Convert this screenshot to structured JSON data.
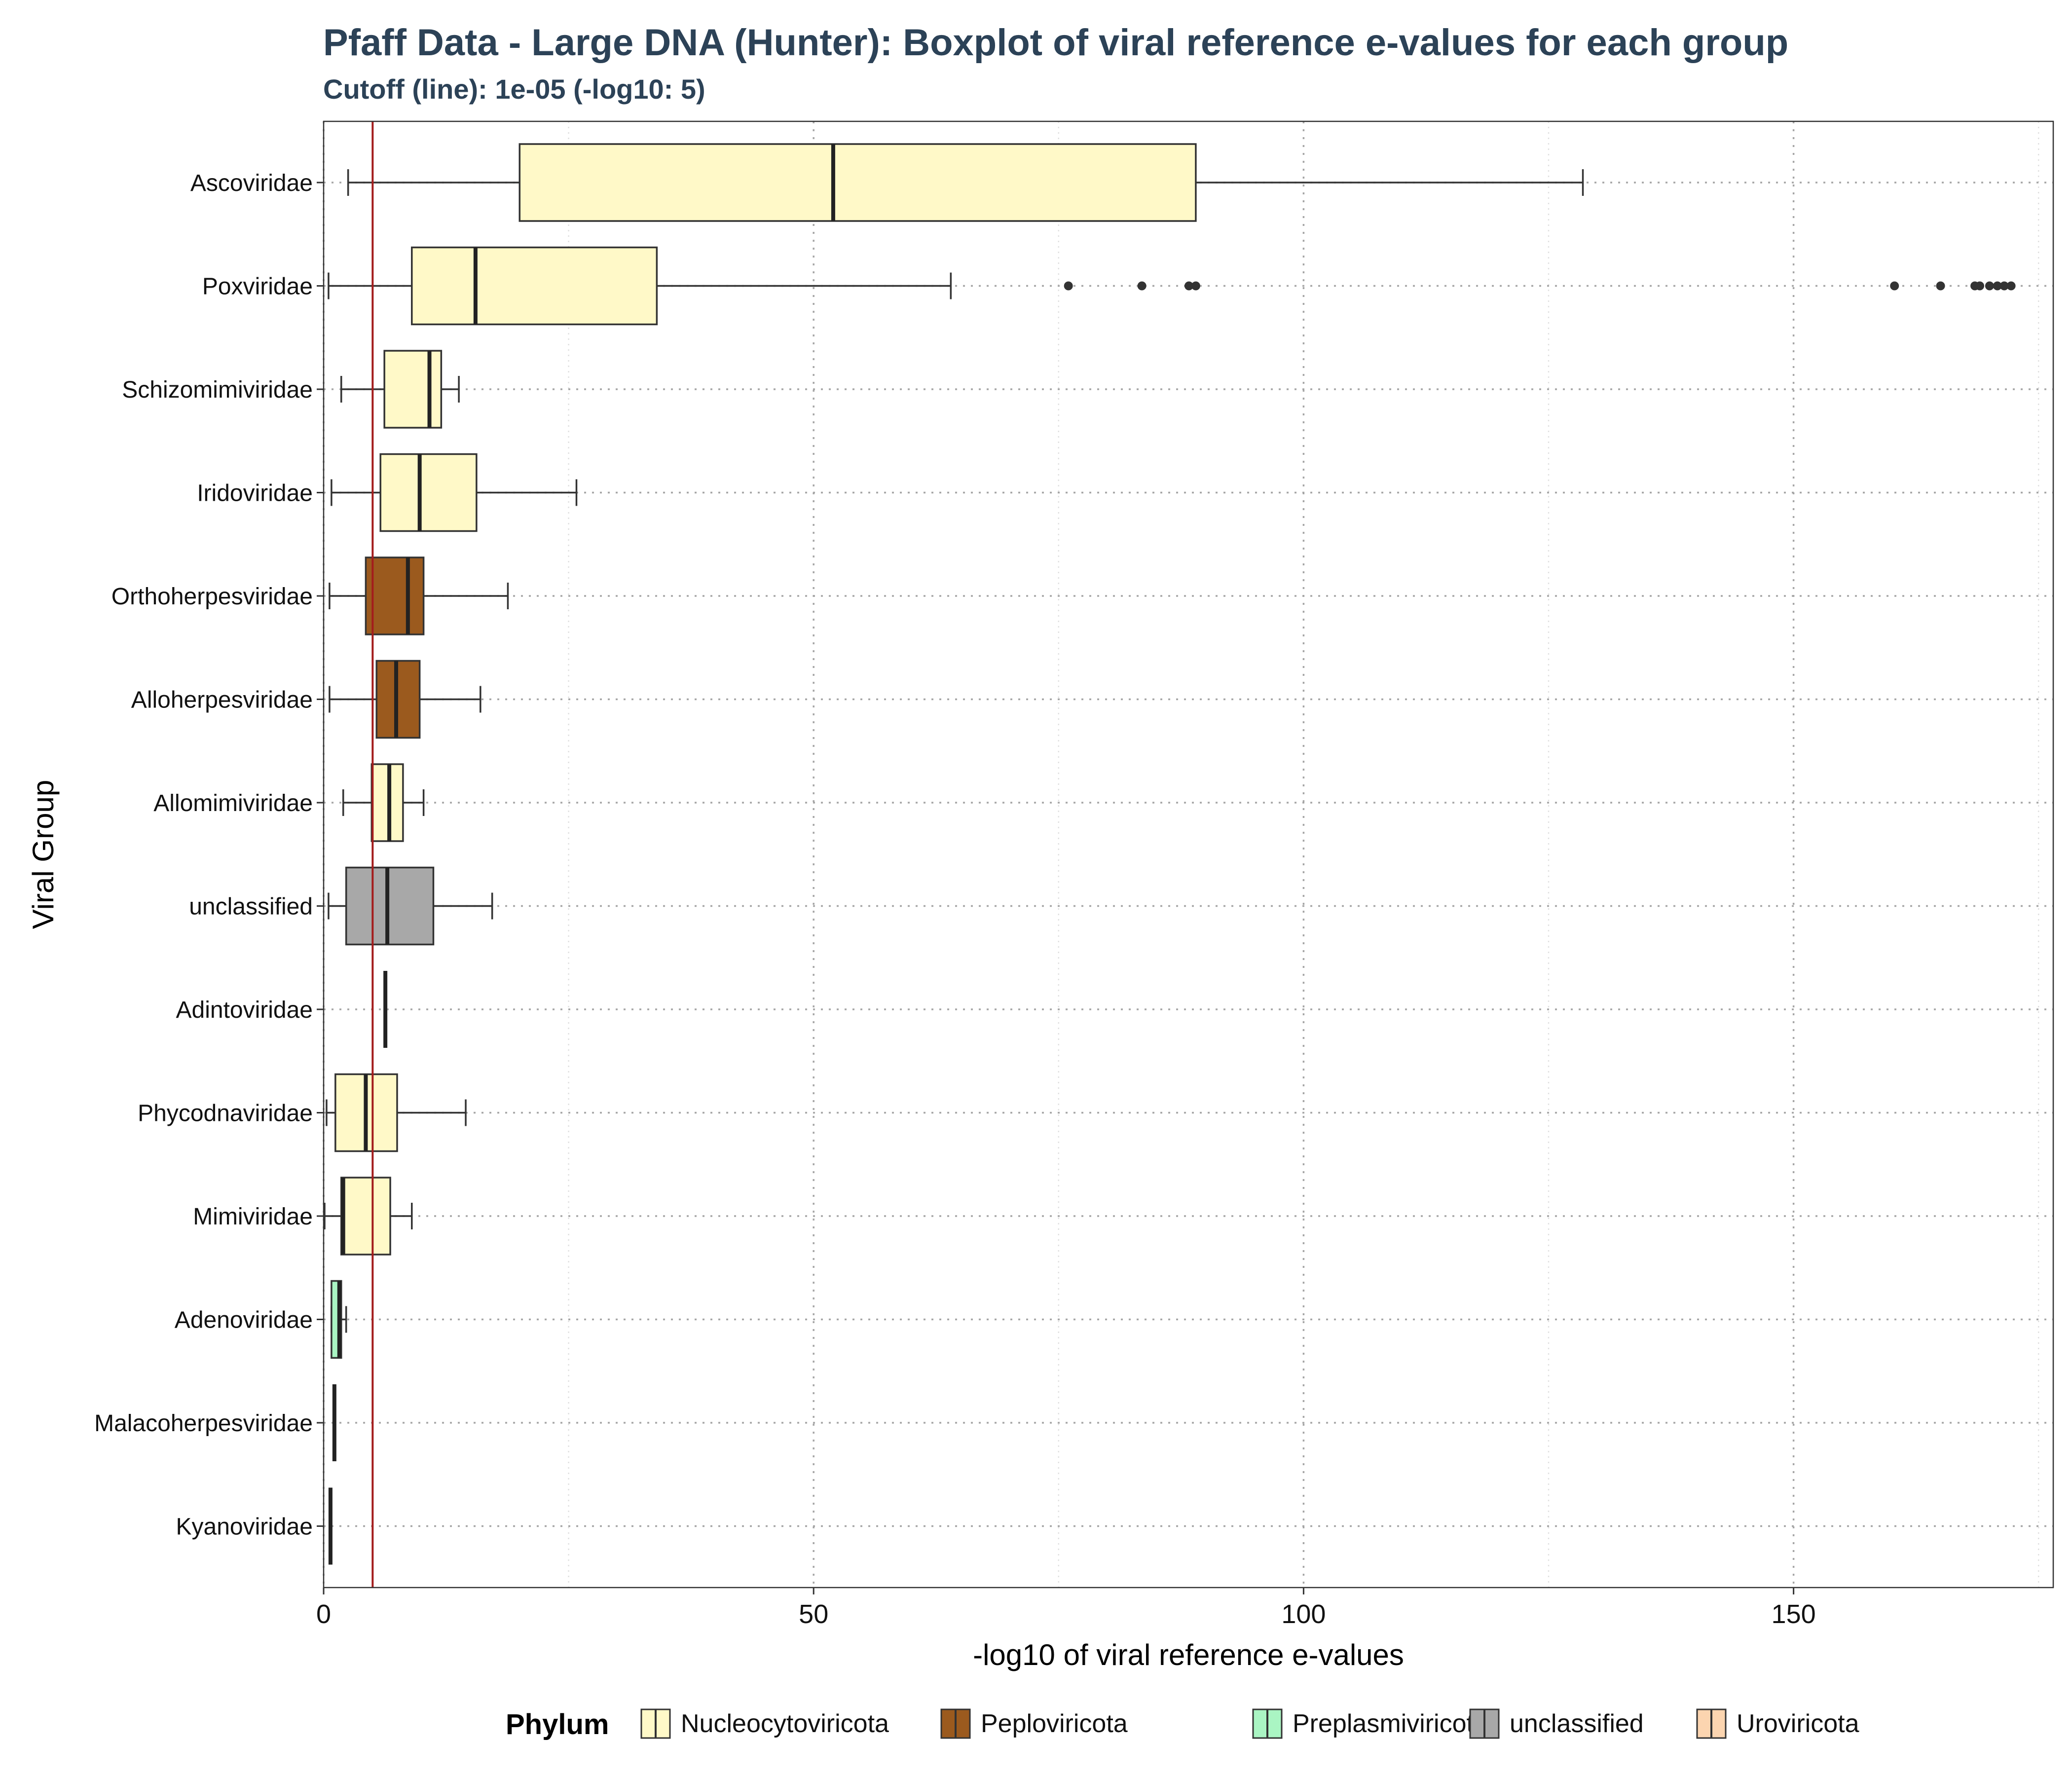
{
  "chart_data": {
    "type": "boxplot",
    "orientation": "horizontal",
    "title": "Pfaff Data - Large DNA (Hunter): Boxplot of viral reference e-values for each group",
    "subtitle": "Cutoff (line): 1e-05 (-log10: 5)",
    "xlabel": "-log10 of viral reference e-values",
    "ylabel": "Viral Group",
    "xlim": [
      0,
      176.5
    ],
    "xticks": [
      0,
      50,
      100,
      150
    ],
    "cutoff": 5,
    "cutoff_color": "#a31c1c",
    "grid": "dotted",
    "legend_position": "bottom",
    "legend_title": "Phylum",
    "legend": [
      {
        "label": "Nucleocytoviricota",
        "color": "#fff9c8"
      },
      {
        "label": "Peploviricota",
        "color": "#9b5a1e"
      },
      {
        "label": "Preplasmiviricota",
        "color": "#aaf5c3"
      },
      {
        "label": "unclassified",
        "color": "#a8a8a8"
      },
      {
        "label": "Uroviricota",
        "color": "#fcd5b0"
      }
    ],
    "groups": [
      {
        "name": "Ascoviridae",
        "phylum": "Nucleocytoviricota",
        "color": "#fff9c8",
        "min": 2.5,
        "q1": 20.0,
        "median": 52.0,
        "q3": 89.0,
        "max": 128.5,
        "outliers": []
      },
      {
        "name": "Poxviridae",
        "phylum": "Nucleocytoviricota",
        "color": "#fff9c8",
        "min": 0.5,
        "q1": 9.0,
        "median": 15.5,
        "q3": 34.0,
        "max": 64.0,
        "outliers": [
          76,
          83.5,
          88.3,
          89,
          160.3,
          165,
          168.5,
          169,
          170,
          170.8,
          171.5,
          172.2
        ]
      },
      {
        "name": "Schizomimiviridae",
        "phylum": "Nucleocytoviricota",
        "color": "#fff9c8",
        "min": 1.8,
        "q1": 6.2,
        "median": 10.8,
        "q3": 12.0,
        "max": 13.8,
        "outliers": []
      },
      {
        "name": "Iridoviridae",
        "phylum": "Nucleocytoviricota",
        "color": "#fff9c8",
        "min": 0.8,
        "q1": 5.8,
        "median": 9.8,
        "q3": 15.6,
        "max": 25.8,
        "outliers": []
      },
      {
        "name": "Orthoherpesviridae",
        "phylum": "Peploviricota",
        "color": "#9b5a1e",
        "min": 0.6,
        "q1": 4.3,
        "median": 8.6,
        "q3": 10.2,
        "max": 18.8,
        "outliers": []
      },
      {
        "name": "Alloherpesviridae",
        "phylum": "Peploviricota",
        "color": "#9b5a1e",
        "min": 0.6,
        "q1": 5.4,
        "median": 7.4,
        "q3": 9.8,
        "max": 16.0,
        "outliers": []
      },
      {
        "name": "Allomimiviridae",
        "phylum": "Nucleocytoviricota",
        "color": "#fff9c8",
        "min": 2.0,
        "q1": 4.9,
        "median": 6.7,
        "q3": 8.1,
        "max": 10.2,
        "outliers": []
      },
      {
        "name": "unclassified",
        "phylum": "unclassified",
        "color": "#a8a8a8",
        "min": 0.5,
        "q1": 2.3,
        "median": 6.5,
        "q3": 11.2,
        "max": 17.2,
        "outliers": []
      },
      {
        "name": "Adintoviridae",
        "phylum": "Peploviricota",
        "color": "#9b5a1e",
        "min": 6.3,
        "q1": 6.3,
        "median": 6.3,
        "q3": 6.3,
        "max": 6.3,
        "outliers": []
      },
      {
        "name": "Phycodnaviridae",
        "phylum": "Nucleocytoviricota",
        "color": "#fff9c8",
        "min": 0.3,
        "q1": 1.2,
        "median": 4.3,
        "q3": 7.5,
        "max": 14.5,
        "outliers": []
      },
      {
        "name": "Mimiviridae",
        "phylum": "Nucleocytoviricota",
        "color": "#fff9c8",
        "min": 0.1,
        "q1": 1.8,
        "median": 2.0,
        "q3": 6.8,
        "max": 9.0,
        "outliers": []
      },
      {
        "name": "Adenoviridae",
        "phylum": "Preplasmiviricota",
        "color": "#aaf5c3",
        "min": 0.8,
        "q1": 0.8,
        "median": 1.6,
        "q3": 1.8,
        "max": 2.3,
        "outliers": []
      },
      {
        "name": "Malacoherpesviridae",
        "phylum": "Peploviricota",
        "color": "#9b5a1e",
        "min": 1.1,
        "q1": 1.1,
        "median": 1.1,
        "q3": 1.1,
        "max": 1.1,
        "outliers": []
      },
      {
        "name": "Kyanoviridae",
        "phylum": "Uroviricota",
        "color": "#fcd5b0",
        "min": 0.7,
        "q1": 0.7,
        "median": 0.7,
        "q3": 0.7,
        "max": 0.7,
        "outliers": []
      }
    ]
  }
}
